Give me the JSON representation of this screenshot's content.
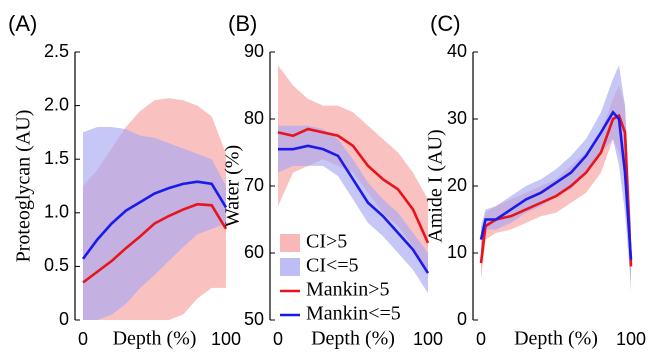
{
  "chart_data": [
    {
      "type": "line",
      "label": "(A)",
      "ylabel": "Proteoglycan (AU)",
      "xlabel": "Depth (%)",
      "x": [
        0,
        10,
        20,
        30,
        40,
        50,
        60,
        70,
        80,
        90,
        100
      ],
      "xlim": [
        0,
        100
      ],
      "xticks": [
        0,
        100
      ],
      "ylim": [
        0,
        2.5
      ],
      "yticks": [
        0,
        0.5,
        {
          "value": 1,
          "label": "1.0"
        },
        1.5,
        {
          "value": 2,
          "label": "2.0"
        },
        2.5
      ],
      "series": [
        {
          "color": "#e8141c",
          "band_color": "#f7a0a0",
          "values": [
            0.35,
            0.45,
            0.55,
            0.67,
            0.78,
            0.9,
            0.97,
            1.03,
            1.08,
            1.07,
            0.85
          ],
          "upper": [
            1.25,
            1.4,
            1.6,
            1.8,
            1.95,
            2.05,
            2.07,
            2.05,
            2.0,
            1.9,
            1.55
          ],
          "lower": [
            0,
            0,
            0,
            0,
            0,
            0,
            0,
            0.05,
            0.2,
            0.3,
            0.3
          ]
        },
        {
          "color": "#1a1aeb",
          "band_color": "#a8a8f2",
          "values": [
            0.57,
            0.75,
            0.9,
            1.02,
            1.1,
            1.18,
            1.23,
            1.27,
            1.29,
            1.27,
            1.05
          ],
          "upper": [
            1.75,
            1.8,
            1.8,
            1.78,
            1.72,
            1.7,
            1.65,
            1.6,
            1.55,
            1.5,
            1.25
          ],
          "lower": [
            0,
            0,
            0.05,
            0.15,
            0.3,
            0.42,
            0.55,
            0.68,
            0.8,
            0.85,
            0.9
          ]
        }
      ]
    },
    {
      "type": "line",
      "label": "(B)",
      "ylabel": "Water (%)",
      "xlabel": "Depth (%)",
      "x": [
        0,
        10,
        20,
        30,
        40,
        50,
        60,
        70,
        80,
        90,
        100
      ],
      "xlim": [
        0,
        100
      ],
      "xticks": [
        0,
        100
      ],
      "ylim": [
        50,
        90
      ],
      "yticks": [
        50,
        60,
        70,
        80,
        90
      ],
      "series": [
        {
          "color": "#e8141c",
          "band_color": "#f7a0a0",
          "values": [
            78,
            77.5,
            78.5,
            78,
            77.5,
            76,
            73,
            71,
            69.5,
            66.5,
            61.5
          ],
          "upper": [
            88,
            85,
            83,
            82,
            82,
            81,
            79,
            77,
            75,
            72,
            68
          ],
          "lower": [
            67,
            72,
            73,
            74,
            73,
            72,
            69,
            66,
            64,
            61,
            57
          ]
        },
        {
          "color": "#1a1aeb",
          "band_color": "#a8a8f2",
          "values": [
            75.5,
            75.5,
            76,
            75.5,
            74.5,
            71,
            67.5,
            65.5,
            63,
            60.5,
            57
          ],
          "upper": [
            79,
            79,
            79,
            78.5,
            77,
            74,
            70.5,
            68,
            66,
            63,
            60
          ],
          "lower": [
            72,
            73,
            73,
            73,
            71.5,
            68,
            64.5,
            62.5,
            60,
            57.5,
            54
          ]
        }
      ],
      "legend": [
        {
          "name": "CI>5",
          "kind": "band",
          "color": "#f7a0a0"
        },
        {
          "name": "CI<=5",
          "kind": "band",
          "color": "#a8a8f2"
        },
        {
          "name": "Mankin>5",
          "kind": "line",
          "color": "#e8141c"
        },
        {
          "name": "Mankin<=5",
          "kind": "line",
          "color": "#1a1aeb"
        }
      ]
    },
    {
      "type": "line",
      "label": "(C)",
      "ylabel": "Amide I (AU)",
      "xlabel": "Depth (%)",
      "x": [
        0,
        3,
        10,
        20,
        30,
        40,
        50,
        60,
        70,
        80,
        88,
        92,
        96,
        100
      ],
      "xlim": [
        0,
        100
      ],
      "xticks": [
        0,
        100
      ],
      "ylim": [
        0,
        40
      ],
      "yticks": [
        0,
        10,
        20,
        30,
        40
      ],
      "series": [
        {
          "color": "#e8141c",
          "band_color": "#f7a0a0",
          "values": [
            8.5,
            14,
            15,
            15.5,
            16.5,
            17.5,
            18.5,
            20,
            22,
            25,
            30,
            30.5,
            28,
            8
          ],
          "upper": [
            12,
            16,
            17,
            18,
            19,
            20,
            21,
            23,
            25,
            28,
            33,
            35,
            32,
            12
          ],
          "lower": [
            6,
            12,
            13,
            13.5,
            14.5,
            15.5,
            16,
            17.5,
            19,
            22,
            27,
            25,
            22,
            4
          ]
        },
        {
          "color": "#1a1aeb",
          "band_color": "#a8a8f2",
          "values": [
            12,
            15,
            15,
            16.5,
            18,
            19,
            20.5,
            22,
            24.5,
            28,
            31,
            30,
            22,
            9
          ],
          "upper": [
            14,
            16.5,
            17,
            18.5,
            20,
            21,
            22.5,
            24.5,
            27,
            31,
            36,
            38,
            32,
            14
          ],
          "lower": [
            10,
            13.5,
            13.5,
            14.5,
            16,
            17,
            18.5,
            19.5,
            22,
            25,
            27,
            23,
            16,
            5
          ]
        }
      ]
    }
  ]
}
